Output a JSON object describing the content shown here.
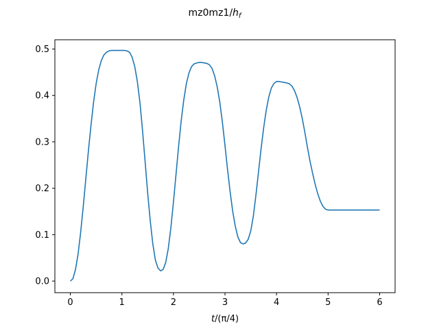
{
  "chart_data": {
    "type": "line",
    "title_main": "mz0mz1/",
    "title_var": "h",
    "title_sub": "f",
    "xlabel_pre": "t",
    "xlabel_post": "/(π/4)",
    "ylabel": "",
    "xlim": [
      -0.3,
      6.3
    ],
    "ylim": [
      -0.025,
      0.52
    ],
    "xticks": [
      0,
      1,
      2,
      3,
      4,
      5,
      6
    ],
    "yticks": [
      0.0,
      0.1,
      0.2,
      0.3,
      0.4,
      0.5
    ],
    "xtick_labels": [
      "0",
      "1",
      "2",
      "3",
      "4",
      "5",
      "6"
    ],
    "ytick_labels": [
      "0.0",
      "0.1",
      "0.2",
      "0.3",
      "0.4",
      "0.5"
    ],
    "grid": false,
    "line_color": "#1f77b4",
    "series": [
      {
        "x": [
          0.0,
          0.05,
          0.1,
          0.15,
          0.2,
          0.25,
          0.3,
          0.35,
          0.4,
          0.45,
          0.5,
          0.55,
          0.6,
          0.65,
          0.7,
          0.75,
          0.8,
          0.85,
          0.9,
          0.95,
          1.0,
          1.05,
          1.1,
          1.15,
          1.2,
          1.25,
          1.3,
          1.35,
          1.4,
          1.45,
          1.5,
          1.55,
          1.6,
          1.65,
          1.7,
          1.75,
          1.8,
          1.85,
          1.9,
          1.95,
          2.0,
          2.05,
          2.1,
          2.15,
          2.2,
          2.25,
          2.3,
          2.35,
          2.4,
          2.45,
          2.5,
          2.55,
          2.6,
          2.65,
          2.7,
          2.75,
          2.8,
          2.85,
          2.9,
          2.95,
          3.0,
          3.05,
          3.1,
          3.15,
          3.2,
          3.25,
          3.3,
          3.35,
          3.4,
          3.45,
          3.5,
          3.55,
          3.6,
          3.65,
          3.7,
          3.75,
          3.8,
          3.85,
          3.9,
          3.95,
          4.0,
          4.05,
          4.1,
          4.15,
          4.2,
          4.25,
          4.3,
          4.35,
          4.4,
          4.45,
          4.5,
          4.55,
          4.6,
          4.65,
          4.7,
          4.75,
          4.8,
          4.85,
          4.9,
          4.95,
          5.0,
          5.05,
          5.1,
          5.15,
          5.2,
          5.25,
          5.3,
          5.35,
          5.4,
          5.45,
          5.5,
          5.55,
          5.6,
          5.65,
          5.7,
          5.75,
          5.8,
          5.85,
          5.9,
          5.95,
          6.0
        ],
        "y": [
          0.0,
          0.005,
          0.025,
          0.058,
          0.105,
          0.16,
          0.22,
          0.28,
          0.335,
          0.385,
          0.425,
          0.455,
          0.475,
          0.487,
          0.493,
          0.496,
          0.497,
          0.497,
          0.497,
          0.497,
          0.497,
          0.497,
          0.496,
          0.493,
          0.482,
          0.462,
          0.43,
          0.385,
          0.325,
          0.258,
          0.19,
          0.13,
          0.08,
          0.045,
          0.028,
          0.022,
          0.025,
          0.04,
          0.07,
          0.115,
          0.17,
          0.23,
          0.29,
          0.345,
          0.39,
          0.425,
          0.448,
          0.462,
          0.468,
          0.47,
          0.471,
          0.471,
          0.47,
          0.469,
          0.466,
          0.458,
          0.442,
          0.418,
          0.385,
          0.342,
          0.292,
          0.24,
          0.192,
          0.15,
          0.118,
          0.095,
          0.083,
          0.08,
          0.082,
          0.09,
          0.108,
          0.14,
          0.185,
          0.235,
          0.285,
          0.33,
          0.368,
          0.397,
          0.416,
          0.426,
          0.43,
          0.43,
          0.429,
          0.428,
          0.427,
          0.425,
          0.42,
          0.41,
          0.395,
          0.375,
          0.35,
          0.32,
          0.288,
          0.258,
          0.232,
          0.208,
          0.188,
          0.172,
          0.161,
          0.155,
          0.153,
          0.153,
          0.153,
          0.153,
          0.153,
          0.153,
          0.153,
          0.153,
          0.153,
          0.153,
          0.153,
          0.153,
          0.153,
          0.153,
          0.153,
          0.153,
          0.153,
          0.153,
          0.153,
          0.153,
          0.153
        ]
      }
    ]
  }
}
